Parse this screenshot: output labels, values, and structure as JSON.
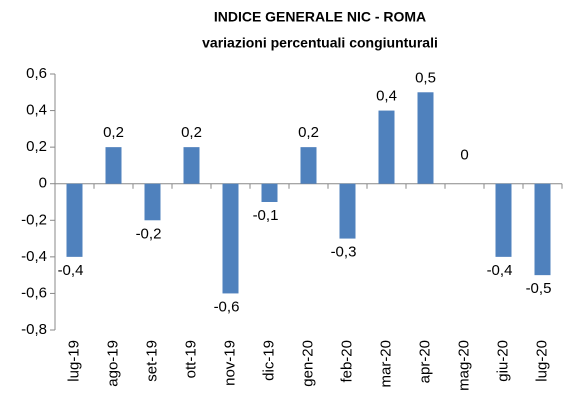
{
  "chart_data": {
    "type": "bar",
    "title": "INDICE GENERALE NIC - ROMA",
    "subtitle": "variazioni percentuali congiunturali",
    "categories": [
      "lug-19",
      "ago-19",
      "set-19",
      "ott-19",
      "nov-19",
      "dic-19",
      "gen-20",
      "feb-20",
      "mar-20",
      "apr-20",
      "mag-20",
      "giu-20",
      "lug-20"
    ],
    "values": [
      -0.4,
      0.2,
      -0.2,
      0.2,
      -0.6,
      -0.1,
      0.2,
      -0.3,
      0.4,
      0.5,
      0,
      -0.4,
      -0.5
    ],
    "value_labels": [
      "-0,4",
      "0,2",
      "-0,2",
      "0,2",
      "-0,6",
      "-0,1",
      "0,2",
      "-0,3",
      "0,4",
      "0,5",
      "0",
      "-0,4",
      "-0,5"
    ],
    "color": "#4f81bd",
    "ylim": [
      -0.8,
      0.6
    ],
    "yticks": [
      {
        "value": -0.8,
        "label": "-0,8"
      },
      {
        "value": -0.6,
        "label": "-0,6"
      },
      {
        "value": -0.4,
        "label": "-0,4"
      },
      {
        "value": -0.2,
        "label": "-0,2"
      },
      0,
      {
        "value": 0.2,
        "label": "0,2"
      },
      {
        "value": 0.4,
        "label": "0,4"
      },
      {
        "value": 0.6,
        "label": "0,6"
      }
    ],
    "grid": false
  }
}
